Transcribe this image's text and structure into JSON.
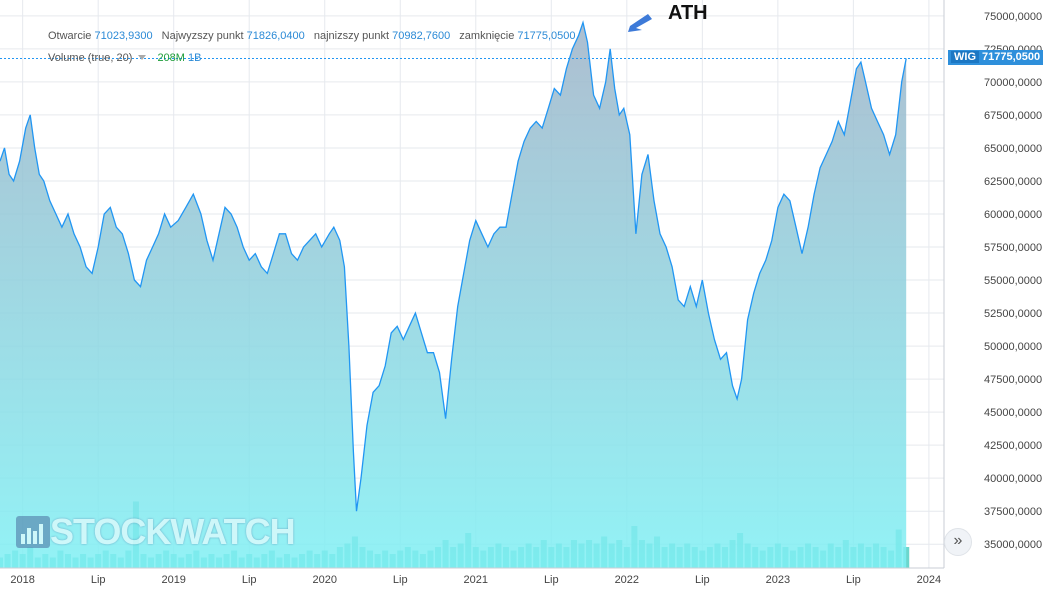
{
  "legend": {
    "open_label": "Otwarcie",
    "open_value": "71023,9300",
    "high_label": "Najwyzszy punkt",
    "high_value": "71826,0400",
    "low_label": "najnizszy punkt",
    "low_value": "70982,7600",
    "close_label": "zamknięcie",
    "close_value": "71775,0500",
    "volume_label": "Volume (true, 20)",
    "volume_up": "208M",
    "volume_down": "1B"
  },
  "annotation": {
    "ath_label": "ATH"
  },
  "price_tag": {
    "symbol": "WIG",
    "value": "71775,0500"
  },
  "watermark": {
    "text": "STOCKWATCH"
  },
  "scroll_button": {
    "glyph": "»"
  },
  "colors": {
    "line": "#2196f3",
    "area_top": "#9fb3c8",
    "area_bottom": "#7ff0f4",
    "volume": "#2ec4b6",
    "grid": "#e6e9ee"
  },
  "chart_data": {
    "type": "area",
    "ylim": [
      33200,
      76200
    ],
    "xlim": [
      2017.85,
      2024.1
    ],
    "y_ticks": [
      35000,
      37500,
      40000,
      42500,
      45000,
      47500,
      50000,
      52500,
      55000,
      57500,
      60000,
      62500,
      65000,
      67500,
      70000,
      72500,
      75000
    ],
    "y_tick_labels": [
      "35000,0000",
      "37500,0000",
      "40000,0000",
      "42500,0000",
      "45000,0000",
      "47500,0000",
      "50000,0000",
      "52500,0000",
      "55000,0000",
      "57500,0000",
      "60000,0000",
      "62500,0000",
      "65000,0000",
      "67500,0000",
      "70000,0000",
      "72500,0000",
      "75000,0000"
    ],
    "x_ticks": [
      {
        "x": 2018.0,
        "label": "2018"
      },
      {
        "x": 2018.5,
        "label": "Lip"
      },
      {
        "x": 2019.0,
        "label": "2019"
      },
      {
        "x": 2019.5,
        "label": "Lip"
      },
      {
        "x": 2020.0,
        "label": "2020"
      },
      {
        "x": 2020.5,
        "label": "Lip"
      },
      {
        "x": 2021.0,
        "label": "2021"
      },
      {
        "x": 2021.5,
        "label": "Lip"
      },
      {
        "x": 2022.0,
        "label": "2022"
      },
      {
        "x": 2022.5,
        "label": "Lip"
      },
      {
        "x": 2023.0,
        "label": "2023"
      },
      {
        "x": 2023.5,
        "label": "Lip"
      },
      {
        "x": 2024.0,
        "label": "2024"
      }
    ],
    "series": [
      {
        "values": [
          [
            2017.85,
            64000
          ],
          [
            2017.88,
            65000
          ],
          [
            2017.91,
            63000
          ],
          [
            2017.94,
            62500
          ],
          [
            2017.98,
            64000
          ],
          [
            2018.02,
            66500
          ],
          [
            2018.05,
            67500
          ],
          [
            2018.08,
            65000
          ],
          [
            2018.11,
            63000
          ],
          [
            2018.14,
            62500
          ],
          [
            2018.18,
            61000
          ],
          [
            2018.22,
            60000
          ],
          [
            2018.26,
            59000
          ],
          [
            2018.3,
            60000
          ],
          [
            2018.34,
            58500
          ],
          [
            2018.38,
            57500
          ],
          [
            2018.42,
            56000
          ],
          [
            2018.46,
            55500
          ],
          [
            2018.5,
            57500
          ],
          [
            2018.54,
            60000
          ],
          [
            2018.58,
            60500
          ],
          [
            2018.62,
            59000
          ],
          [
            2018.66,
            58500
          ],
          [
            2018.7,
            57000
          ],
          [
            2018.74,
            55000
          ],
          [
            2018.78,
            54500
          ],
          [
            2018.82,
            56500
          ],
          [
            2018.86,
            57500
          ],
          [
            2018.9,
            58500
          ],
          [
            2018.94,
            60000
          ],
          [
            2018.98,
            59000
          ],
          [
            2019.03,
            59500
          ],
          [
            2019.08,
            60500
          ],
          [
            2019.13,
            61500
          ],
          [
            2019.18,
            60000
          ],
          [
            2019.22,
            58000
          ],
          [
            2019.26,
            56500
          ],
          [
            2019.3,
            58500
          ],
          [
            2019.34,
            60500
          ],
          [
            2019.38,
            60000
          ],
          [
            2019.42,
            59000
          ],
          [
            2019.46,
            57500
          ],
          [
            2019.5,
            56500
          ],
          [
            2019.54,
            57000
          ],
          [
            2019.58,
            56000
          ],
          [
            2019.62,
            55500
          ],
          [
            2019.66,
            57000
          ],
          [
            2019.7,
            58500
          ],
          [
            2019.74,
            58500
          ],
          [
            2019.78,
            57000
          ],
          [
            2019.82,
            56500
          ],
          [
            2019.86,
            57500
          ],
          [
            2019.9,
            58000
          ],
          [
            2019.94,
            58500
          ],
          [
            2019.98,
            57500
          ],
          [
            2020.03,
            58500
          ],
          [
            2020.06,
            59000
          ],
          [
            2020.1,
            58000
          ],
          [
            2020.13,
            56000
          ],
          [
            2020.16,
            50000
          ],
          [
            2020.19,
            42000
          ],
          [
            2020.21,
            37500
          ],
          [
            2020.24,
            40000
          ],
          [
            2020.28,
            44000
          ],
          [
            2020.32,
            46500
          ],
          [
            2020.36,
            47000
          ],
          [
            2020.4,
            48500
          ],
          [
            2020.44,
            51000
          ],
          [
            2020.48,
            51500
          ],
          [
            2020.52,
            50500
          ],
          [
            2020.56,
            51500
          ],
          [
            2020.6,
            52500
          ],
          [
            2020.64,
            51000
          ],
          [
            2020.68,
            49500
          ],
          [
            2020.72,
            49500
          ],
          [
            2020.76,
            48000
          ],
          [
            2020.8,
            44500
          ],
          [
            2020.84,
            49000
          ],
          [
            2020.88,
            53000
          ],
          [
            2020.92,
            55500
          ],
          [
            2020.96,
            58000
          ],
          [
            2021.0,
            59500
          ],
          [
            2021.04,
            58500
          ],
          [
            2021.08,
            57500
          ],
          [
            2021.12,
            58500
          ],
          [
            2021.16,
            59000
          ],
          [
            2021.2,
            59000
          ],
          [
            2021.24,
            61500
          ],
          [
            2021.28,
            64000
          ],
          [
            2021.32,
            65500
          ],
          [
            2021.36,
            66500
          ],
          [
            2021.4,
            67000
          ],
          [
            2021.44,
            66500
          ],
          [
            2021.48,
            68000
          ],
          [
            2021.52,
            69500
          ],
          [
            2021.56,
            69000
          ],
          [
            2021.6,
            71000
          ],
          [
            2021.64,
            72500
          ],
          [
            2021.68,
            73500
          ],
          [
            2021.71,
            74500
          ],
          [
            2021.74,
            73000
          ],
          [
            2021.78,
            69000
          ],
          [
            2021.82,
            68000
          ],
          [
            2021.86,
            70000
          ],
          [
            2021.89,
            72500
          ],
          [
            2021.92,
            69500
          ],
          [
            2021.95,
            67500
          ],
          [
            2021.98,
            68000
          ],
          [
            2022.02,
            66000
          ],
          [
            2022.06,
            58500
          ],
          [
            2022.1,
            63000
          ],
          [
            2022.14,
            64500
          ],
          [
            2022.18,
            61000
          ],
          [
            2022.22,
            58500
          ],
          [
            2022.26,
            57500
          ],
          [
            2022.3,
            56000
          ],
          [
            2022.34,
            53500
          ],
          [
            2022.38,
            53000
          ],
          [
            2022.42,
            54500
          ],
          [
            2022.46,
            53000
          ],
          [
            2022.5,
            55000
          ],
          [
            2022.54,
            52500
          ],
          [
            2022.58,
            50500
          ],
          [
            2022.62,
            49000
          ],
          [
            2022.66,
            49500
          ],
          [
            2022.7,
            47000
          ],
          [
            2022.73,
            46000
          ],
          [
            2022.76,
            47500
          ],
          [
            2022.8,
            52000
          ],
          [
            2022.84,
            54000
          ],
          [
            2022.88,
            55500
          ],
          [
            2022.92,
            56500
          ],
          [
            2022.96,
            58000
          ],
          [
            2023.0,
            60500
          ],
          [
            2023.04,
            61500
          ],
          [
            2023.08,
            61000
          ],
          [
            2023.12,
            59000
          ],
          [
            2023.16,
            57000
          ],
          [
            2023.2,
            59000
          ],
          [
            2023.24,
            61500
          ],
          [
            2023.28,
            63500
          ],
          [
            2023.32,
            64500
          ],
          [
            2023.36,
            65500
          ],
          [
            2023.4,
            67000
          ],
          [
            2023.44,
            66000
          ],
          [
            2023.48,
            68500
          ],
          [
            2023.52,
            71000
          ],
          [
            2023.55,
            71500
          ],
          [
            2023.58,
            70000
          ],
          [
            2023.62,
            68000
          ],
          [
            2023.66,
            67000
          ],
          [
            2023.7,
            66000
          ],
          [
            2023.74,
            64500
          ],
          [
            2023.78,
            66000
          ],
          [
            2023.82,
            70000
          ],
          [
            2023.85,
            71775.05
          ]
        ]
      }
    ],
    "volume": [
      [
        2017.85,
        3
      ],
      [
        2017.9,
        4
      ],
      [
        2017.95,
        5
      ],
      [
        2018.0,
        4
      ],
      [
        2018.05,
        6
      ],
      [
        2018.1,
        3
      ],
      [
        2018.15,
        4
      ],
      [
        2018.2,
        3
      ],
      [
        2018.25,
        5
      ],
      [
        2018.3,
        4
      ],
      [
        2018.35,
        3
      ],
      [
        2018.4,
        4
      ],
      [
        2018.45,
        3
      ],
      [
        2018.5,
        4
      ],
      [
        2018.55,
        5
      ],
      [
        2018.6,
        4
      ],
      [
        2018.65,
        3
      ],
      [
        2018.7,
        5
      ],
      [
        2018.75,
        19
      ],
      [
        2018.8,
        4
      ],
      [
        2018.85,
        3
      ],
      [
        2018.9,
        4
      ],
      [
        2018.95,
        5
      ],
      [
        2019.0,
        4
      ],
      [
        2019.05,
        3
      ],
      [
        2019.1,
        4
      ],
      [
        2019.15,
        5
      ],
      [
        2019.2,
        3
      ],
      [
        2019.25,
        4
      ],
      [
        2019.3,
        3
      ],
      [
        2019.35,
        4
      ],
      [
        2019.4,
        5
      ],
      [
        2019.45,
        3
      ],
      [
        2019.5,
        4
      ],
      [
        2019.55,
        3
      ],
      [
        2019.6,
        4
      ],
      [
        2019.65,
        5
      ],
      [
        2019.7,
        3
      ],
      [
        2019.75,
        4
      ],
      [
        2019.8,
        3
      ],
      [
        2019.85,
        4
      ],
      [
        2019.9,
        5
      ],
      [
        2019.95,
        4
      ],
      [
        2020.0,
        5
      ],
      [
        2020.05,
        4
      ],
      [
        2020.1,
        6
      ],
      [
        2020.15,
        7
      ],
      [
        2020.2,
        9
      ],
      [
        2020.25,
        6
      ],
      [
        2020.3,
        5
      ],
      [
        2020.35,
        4
      ],
      [
        2020.4,
        5
      ],
      [
        2020.45,
        4
      ],
      [
        2020.5,
        5
      ],
      [
        2020.55,
        6
      ],
      [
        2020.6,
        5
      ],
      [
        2020.65,
        4
      ],
      [
        2020.7,
        5
      ],
      [
        2020.75,
        6
      ],
      [
        2020.8,
        8
      ],
      [
        2020.85,
        6
      ],
      [
        2020.9,
        7
      ],
      [
        2020.95,
        10
      ],
      [
        2021.0,
        6
      ],
      [
        2021.05,
        5
      ],
      [
        2021.1,
        6
      ],
      [
        2021.15,
        7
      ],
      [
        2021.2,
        6
      ],
      [
        2021.25,
        5
      ],
      [
        2021.3,
        6
      ],
      [
        2021.35,
        7
      ],
      [
        2021.4,
        6
      ],
      [
        2021.45,
        8
      ],
      [
        2021.5,
        6
      ],
      [
        2021.55,
        7
      ],
      [
        2021.6,
        6
      ],
      [
        2021.65,
        8
      ],
      [
        2021.7,
        7
      ],
      [
        2021.75,
        8
      ],
      [
        2021.8,
        7
      ],
      [
        2021.85,
        9
      ],
      [
        2021.9,
        7
      ],
      [
        2021.95,
        8
      ],
      [
        2022.0,
        6
      ],
      [
        2022.05,
        12
      ],
      [
        2022.1,
        8
      ],
      [
        2022.15,
        7
      ],
      [
        2022.2,
        9
      ],
      [
        2022.25,
        6
      ],
      [
        2022.3,
        7
      ],
      [
        2022.35,
        6
      ],
      [
        2022.4,
        7
      ],
      [
        2022.45,
        6
      ],
      [
        2022.5,
        5
      ],
      [
        2022.55,
        6
      ],
      [
        2022.6,
        7
      ],
      [
        2022.65,
        6
      ],
      [
        2022.7,
        8
      ],
      [
        2022.75,
        10
      ],
      [
        2022.8,
        7
      ],
      [
        2022.85,
        6
      ],
      [
        2022.9,
        5
      ],
      [
        2022.95,
        6
      ],
      [
        2023.0,
        7
      ],
      [
        2023.05,
        6
      ],
      [
        2023.1,
        5
      ],
      [
        2023.15,
        6
      ],
      [
        2023.2,
        7
      ],
      [
        2023.25,
        6
      ],
      [
        2023.3,
        5
      ],
      [
        2023.35,
        7
      ],
      [
        2023.4,
        6
      ],
      [
        2023.45,
        8
      ],
      [
        2023.5,
        6
      ],
      [
        2023.55,
        7
      ],
      [
        2023.6,
        6
      ],
      [
        2023.65,
        7
      ],
      [
        2023.7,
        6
      ],
      [
        2023.75,
        5
      ],
      [
        2023.8,
        11
      ],
      [
        2023.85,
        6
      ]
    ]
  }
}
